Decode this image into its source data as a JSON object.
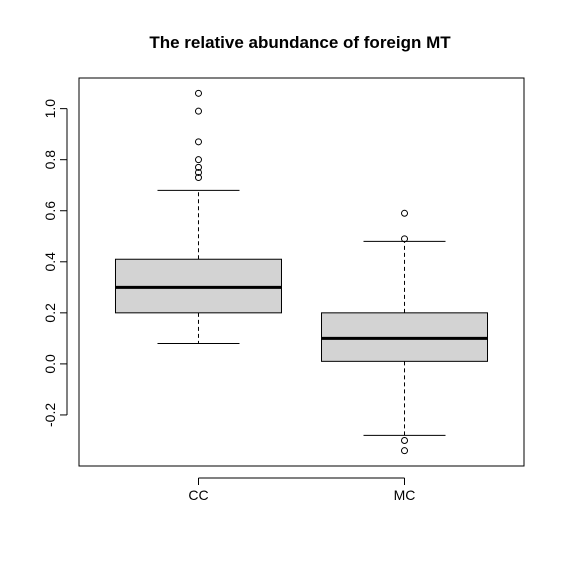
{
  "chart_data": {
    "type": "boxplot",
    "title": "The relative abundance of foreign MT",
    "xlabel": "",
    "ylabel": "",
    "categories": [
      "CC",
      "MC"
    ],
    "ylim": [
      -0.4,
      1.12
    ],
    "yticks": [
      -0.2,
      0.0,
      0.2,
      0.4,
      0.6,
      0.8,
      1.0
    ],
    "ytick_labels": [
      "-0.2",
      "0.0",
      "0.2",
      "0.4",
      "0.6",
      "0.8",
      "1.0"
    ],
    "box_color": "#d3d3d3",
    "boxes": [
      {
        "category": "CC",
        "whisker_low": 0.08,
        "q1": 0.2,
        "median": 0.3,
        "q3": 0.41,
        "whisker_high": 0.68,
        "outliers": [
          1.06,
          0.99,
          0.87,
          0.8,
          0.77,
          0.75,
          0.73
        ]
      },
      {
        "category": "MC",
        "whisker_low": -0.28,
        "q1": 0.01,
        "median": 0.1,
        "q3": 0.2,
        "whisker_high": 0.48,
        "outliers": [
          0.59,
          0.49,
          -0.3,
          -0.34
        ]
      }
    ]
  }
}
